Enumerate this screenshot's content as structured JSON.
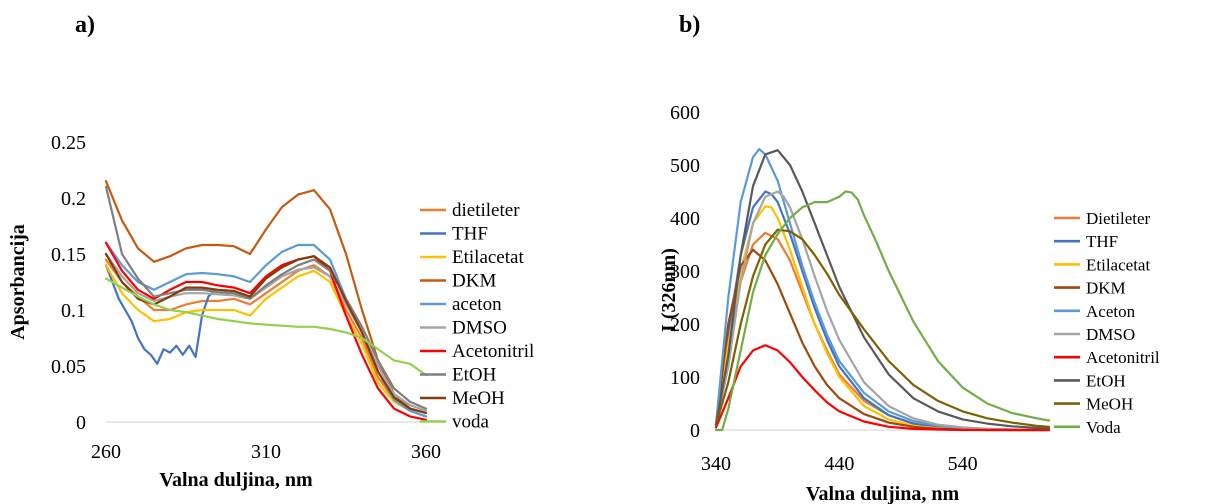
{
  "panels": {
    "a": "a)",
    "b": "b)"
  },
  "chart_data": [
    {
      "type": "line",
      "panel": "a",
      "xlabel": "Valna duljina, nm",
      "ylabel": "Apsorbancija",
      "xlim": [
        260,
        360
      ],
      "ylim": [
        0,
        0.25
      ],
      "xticks": [
        "260",
        "310",
        "360"
      ],
      "yticks": [
        "0",
        "0.05",
        "0.1",
        "0.15",
        "0.2",
        "0.25"
      ],
      "grid": false,
      "legend_position": "right",
      "series": [
        {
          "name": "dietileter",
          "color": "#ED7D31",
          "x": [
            260,
            265,
            270,
            275,
            280,
            285,
            290,
            295,
            300,
            305,
            310,
            315,
            320,
            325,
            330,
            335,
            340,
            345,
            350,
            355,
            360
          ],
          "y": [
            0.145,
            0.125,
            0.112,
            0.1,
            0.1,
            0.105,
            0.108,
            0.108,
            0.11,
            0.105,
            0.115,
            0.125,
            0.135,
            0.14,
            0.13,
            0.1,
            0.075,
            0.04,
            0.02,
            0.01,
            0.005
          ]
        },
        {
          "name": "THF",
          "color": "#4472C4",
          "x": [
            260,
            262,
            264,
            266,
            268,
            270,
            272,
            274,
            276,
            278,
            280,
            282,
            284,
            286,
            288,
            290,
            292,
            294
          ],
          "y": [
            0.14,
            0.125,
            0.11,
            0.1,
            0.09,
            0.075,
            0.065,
            0.06,
            0.052,
            0.065,
            0.062,
            0.068,
            0.06,
            0.068,
            0.058,
            0.095,
            0.112,
            0.118
          ]
        },
        {
          "name": "Etilacetat",
          "color": "#FFC000",
          "x": [
            260,
            265,
            270,
            275,
            280,
            285,
            290,
            295,
            300,
            305,
            310,
            315,
            320,
            325,
            330,
            335,
            340,
            345,
            350,
            355,
            360
          ],
          "y": [
            0.14,
            0.115,
            0.1,
            0.09,
            0.092,
            0.098,
            0.1,
            0.1,
            0.1,
            0.095,
            0.11,
            0.12,
            0.13,
            0.135,
            0.125,
            0.095,
            0.07,
            0.035,
            0.018,
            0.01,
            0.005
          ]
        },
        {
          "name": "DKM",
          "color": "#C55A11",
          "x": [
            260,
            265,
            270,
            275,
            280,
            285,
            290,
            295,
            300,
            305,
            310,
            315,
            320,
            325,
            330,
            335,
            340,
            345,
            350,
            355,
            360
          ],
          "y": [
            0.215,
            0.18,
            0.155,
            0.143,
            0.148,
            0.155,
            0.158,
            0.158,
            0.157,
            0.15,
            0.172,
            0.192,
            0.203,
            0.207,
            0.19,
            0.15,
            0.1,
            0.055,
            0.025,
            0.012,
            0.008
          ]
        },
        {
          "name": "aceton",
          "color": "#5B9BD5",
          "x": [
            260,
            265,
            270,
            275,
            280,
            285,
            290,
            295,
            300,
            305,
            310,
            315,
            320,
            325,
            330,
            335,
            340,
            345,
            350,
            355,
            360
          ],
          "y": [
            0.16,
            0.14,
            0.125,
            0.118,
            0.125,
            0.132,
            0.133,
            0.132,
            0.13,
            0.125,
            0.14,
            0.152,
            0.158,
            0.158,
            0.145,
            0.11,
            0.08,
            0.045,
            0.02,
            0.01,
            0.005
          ]
        },
        {
          "name": "DMSO",
          "color": "#A5A5A5",
          "x": [
            260,
            265,
            270,
            275,
            280,
            285,
            290,
            295,
            300,
            305,
            310,
            315,
            320,
            325,
            330,
            335,
            340,
            345,
            350,
            355,
            360
          ],
          "y": [
            0.15,
            0.13,
            0.115,
            0.108,
            0.112,
            0.115,
            0.115,
            0.114,
            0.113,
            0.11,
            0.12,
            0.13,
            0.136,
            0.138,
            0.13,
            0.105,
            0.08,
            0.05,
            0.025,
            0.015,
            0.01
          ]
        },
        {
          "name": "Acetonitril",
          "color": "#FF0000",
          "x": [
            260,
            265,
            270,
            275,
            280,
            285,
            290,
            295,
            300,
            305,
            310,
            315,
            320,
            325,
            330,
            335,
            340,
            345,
            350,
            355,
            360
          ],
          "y": [
            0.16,
            0.135,
            0.118,
            0.11,
            0.118,
            0.125,
            0.125,
            0.122,
            0.12,
            0.115,
            0.13,
            0.14,
            0.145,
            0.148,
            0.135,
            0.095,
            0.06,
            0.03,
            0.012,
            0.005,
            0.002
          ]
        },
        {
          "name": "EtOH",
          "color": "#7F7F7F",
          "x": [
            260,
            265,
            270,
            275,
            280,
            285,
            290,
            295,
            300,
            305,
            310,
            315,
            320,
            325,
            330,
            335,
            340,
            345,
            350,
            355,
            360
          ],
          "y": [
            0.21,
            0.15,
            0.128,
            0.112,
            0.115,
            0.118,
            0.118,
            0.116,
            0.115,
            0.11,
            0.122,
            0.132,
            0.14,
            0.145,
            0.135,
            0.11,
            0.085,
            0.055,
            0.03,
            0.018,
            0.012
          ]
        },
        {
          "name": "MeOH",
          "color": "#843C0C",
          "x": [
            260,
            265,
            270,
            275,
            280,
            285,
            290,
            295,
            300,
            305,
            310,
            315,
            320,
            325,
            330,
            335,
            340,
            345,
            350,
            355,
            360
          ],
          "y": [
            0.15,
            0.125,
            0.11,
            0.105,
            0.112,
            0.12,
            0.12,
            0.118,
            0.117,
            0.112,
            0.128,
            0.138,
            0.145,
            0.148,
            0.138,
            0.108,
            0.08,
            0.045,
            0.022,
            0.012,
            0.008
          ]
        },
        {
          "name": "voda",
          "color": "#92D050",
          "x": [
            260,
            265,
            270,
            275,
            280,
            285,
            290,
            295,
            300,
            305,
            310,
            315,
            320,
            325,
            330,
            335,
            340,
            345,
            350,
            355,
            360
          ],
          "y": [
            0.128,
            0.12,
            0.112,
            0.105,
            0.1,
            0.098,
            0.095,
            0.092,
            0.09,
            0.088,
            0.087,
            0.086,
            0.085,
            0.085,
            0.083,
            0.08,
            0.075,
            0.065,
            0.055,
            0.052,
            0.042
          ]
        }
      ]
    },
    {
      "type": "line",
      "panel": "b",
      "xlabel": "Valna duljina, nm",
      "ylabel": "I (326nm)",
      "xlim": [
        340,
        610
      ],
      "ylim": [
        0,
        600
      ],
      "xticks": [
        "340",
        "440",
        "540"
      ],
      "yticks": [
        "0",
        "100",
        "200",
        "300",
        "400",
        "500",
        "600"
      ],
      "grid": false,
      "legend_position": "right",
      "series": [
        {
          "name": "Dietileter",
          "color": "#ED7D31",
          "x": [
            340,
            350,
            360,
            370,
            380,
            390,
            400,
            410,
            420,
            430,
            440,
            460,
            480,
            500,
            520,
            540,
            560,
            580,
            600,
            610
          ],
          "y": [
            10,
            150,
            280,
            350,
            372,
            360,
            320,
            260,
            200,
            150,
            105,
            55,
            28,
            12,
            5,
            2,
            1,
            0,
            0,
            0
          ]
        },
        {
          "name": "THF",
          "color": "#4472C4",
          "x": [
            340,
            350,
            360,
            370,
            380,
            385,
            390,
            400,
            410,
            420,
            430,
            440,
            460,
            480,
            500,
            520,
            540,
            560,
            580,
            600,
            610
          ],
          "y": [
            10,
            180,
            330,
            420,
            450,
            445,
            430,
            370,
            300,
            230,
            170,
            120,
            60,
            28,
            12,
            5,
            2,
            1,
            0,
            0,
            0
          ]
        },
        {
          "name": "Etilacetat",
          "color": "#FFC000",
          "x": [
            340,
            350,
            360,
            370,
            380,
            385,
            390,
            400,
            410,
            420,
            430,
            440,
            460,
            480,
            500,
            520,
            540,
            560,
            580,
            600,
            610
          ],
          "y": [
            10,
            160,
            300,
            390,
            422,
            420,
            400,
            340,
            270,
            200,
            145,
            100,
            45,
            20,
            8,
            3,
            1,
            0,
            0,
            0,
            0
          ]
        },
        {
          "name": "DKM",
          "color": "#9E480E",
          "x": [
            340,
            350,
            360,
            370,
            380,
            390,
            400,
            410,
            420,
            430,
            440,
            460,
            480,
            500,
            520,
            540,
            560,
            580,
            600,
            610
          ],
          "y": [
            10,
            200,
            310,
            340,
            320,
            275,
            220,
            165,
            120,
            85,
            60,
            30,
            14,
            6,
            2,
            1,
            0,
            0,
            0,
            0
          ]
        },
        {
          "name": "Aceton",
          "color": "#5B9BD5",
          "x": [
            340,
            350,
            360,
            370,
            375,
            380,
            390,
            400,
            410,
            420,
            430,
            440,
            460,
            480,
            500,
            520,
            540,
            560,
            580,
            600,
            610
          ],
          "y": [
            10,
            250,
            430,
            515,
            530,
            520,
            470,
            390,
            310,
            240,
            180,
            130,
            70,
            35,
            17,
            8,
            4,
            2,
            1,
            0,
            0
          ]
        },
        {
          "name": "DMSO",
          "color": "#A5A5A5",
          "x": [
            340,
            350,
            360,
            370,
            380,
            390,
            395,
            400,
            410,
            420,
            430,
            440,
            460,
            480,
            500,
            520,
            540,
            560,
            580,
            600,
            610
          ],
          "y": [
            10,
            120,
            280,
            390,
            440,
            450,
            440,
            420,
            360,
            290,
            225,
            170,
            90,
            45,
            22,
            10,
            5,
            2,
            1,
            0,
            0
          ]
        },
        {
          "name": "Acetonitril",
          "color": "#FF0000",
          "x": [
            340,
            350,
            360,
            370,
            380,
            390,
            400,
            410,
            420,
            430,
            440,
            460,
            480,
            500,
            520,
            540,
            560,
            580,
            600,
            610
          ],
          "y": [
            5,
            60,
            120,
            150,
            160,
            150,
            128,
            100,
            75,
            52,
            35,
            16,
            6,
            2,
            1,
            0,
            0,
            0,
            0,
            0
          ]
        },
        {
          "name": "EtOH",
          "color": "#595959",
          "x": [
            340,
            350,
            360,
            370,
            380,
            390,
            400,
            410,
            420,
            430,
            440,
            460,
            480,
            500,
            520,
            540,
            560,
            580,
            600,
            610
          ],
          "y": [
            10,
            140,
            330,
            460,
            520,
            528,
            500,
            450,
            390,
            330,
            270,
            175,
            105,
            60,
            35,
            20,
            12,
            7,
            4,
            3
          ]
        },
        {
          "name": "MeOH",
          "color": "#806000",
          "x": [
            340,
            350,
            360,
            370,
            380,
            390,
            400,
            410,
            420,
            430,
            440,
            460,
            480,
            500,
            520,
            540,
            560,
            580,
            600,
            610
          ],
          "y": [
            10,
            90,
            200,
            290,
            350,
            378,
            375,
            360,
            330,
            295,
            255,
            190,
            130,
            85,
            55,
            35,
            22,
            14,
            8,
            6
          ]
        },
        {
          "name": "Voda",
          "color": "#70AD47",
          "x": [
            340,
            345,
            350,
            360,
            370,
            380,
            390,
            400,
            410,
            420,
            430,
            440,
            445,
            450,
            455,
            460,
            470,
            480,
            500,
            520,
            540,
            560,
            580,
            600,
            610
          ],
          "y": [
            0,
            0,
            40,
            150,
            260,
            330,
            370,
            400,
            420,
            430,
            430,
            440,
            450,
            448,
            435,
            405,
            355,
            300,
            205,
            130,
            80,
            50,
            32,
            22,
            18
          ]
        }
      ]
    }
  ]
}
